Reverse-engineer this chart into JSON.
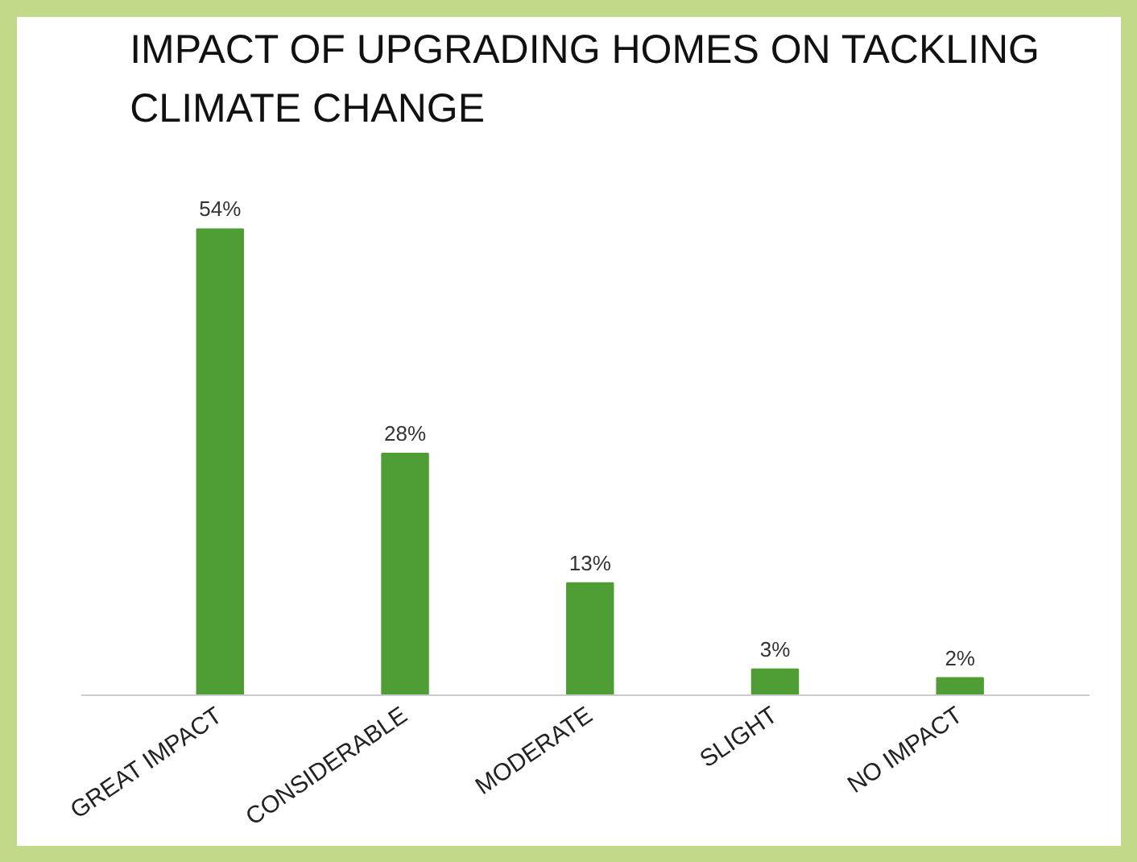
{
  "chart_data": {
    "type": "bar",
    "title": "IMPACT OF UPGRADING HOMES ON TACKLING\nCLIMATE CHANGE",
    "categories": [
      "GREAT IMPACT",
      "CONSIDERABLE",
      "MODERATE",
      "SLIGHT",
      "NO IMPACT"
    ],
    "values": [
      54,
      28,
      13,
      3,
      2
    ],
    "value_labels": [
      "54%",
      "28%",
      "13%",
      "3%",
      "2%"
    ],
    "color": "#4e9e35",
    "grid": false,
    "tick_labels": "x"
  }
}
